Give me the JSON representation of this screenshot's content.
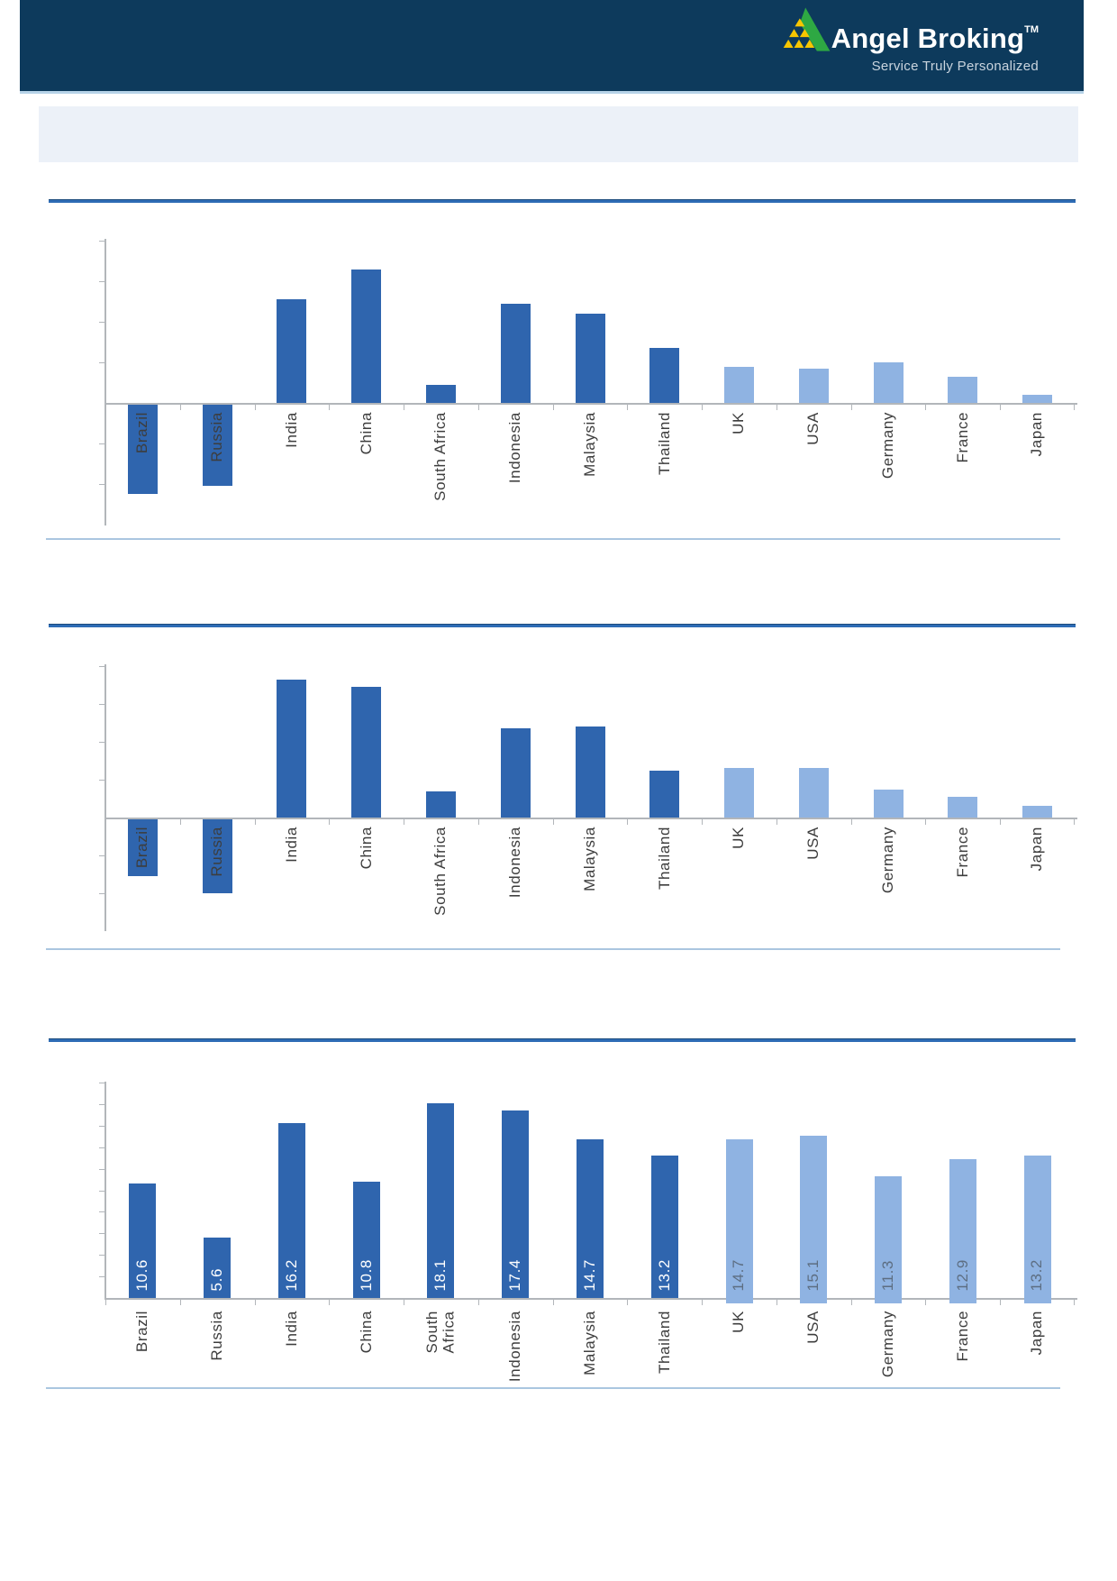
{
  "header": {
    "brand": "Angel Broking",
    "trademark": "TM",
    "tagline": "Service Truly Personalized"
  },
  "banner": {
    "text": ""
  },
  "countries": [
    "Brazil",
    "Russia",
    "India",
    "China",
    "South Africa",
    "Indonesia",
    "Malaysia",
    "Thailand",
    "UK",
    "USA",
    "Germany",
    "France",
    "Japan"
  ],
  "country_groups": [
    "dark",
    "dark",
    "dark",
    "dark",
    "dark",
    "dark",
    "dark",
    "dark",
    "light",
    "light",
    "light",
    "light",
    "light"
  ],
  "colors": {
    "header_bg": "#0D3A5C",
    "header_border": "#B7D3E8",
    "banner_bg": "#ECF1F8",
    "rule_dark": "#2E6CB5",
    "rule_light": "#AAC6E0",
    "bar_dark": "#2F65AE",
    "bar_light": "#8FB3E2",
    "axis": "#B2B6BA",
    "label_text": "#3D3D3D",
    "data_label_on_dark": "#FFFFFF",
    "data_label_on_light": "#5D6E82",
    "logo_green": "#2EA843",
    "logo_yellow": "#F7C600"
  },
  "chart_data": [
    {
      "type": "bar",
      "title": "",
      "xlabel": "",
      "ylabel": "",
      "categories": [
        "Brazil",
        "Russia",
        "India",
        "China",
        "South Africa",
        "Indonesia",
        "Malaysia",
        "Thailand",
        "UK",
        "USA",
        "Germany",
        "France",
        "Japan"
      ],
      "values": [
        -4.4,
        -4.0,
        5.1,
        6.6,
        0.9,
        4.9,
        4.4,
        2.7,
        1.8,
        1.7,
        2.0,
        1.3,
        0.4
      ],
      "ylim": [
        -6,
        8
      ],
      "ytick_interval": 2,
      "grid": false,
      "legend": "none",
      "axis_tick_labels_visible": false
    },
    {
      "type": "bar",
      "title": "",
      "xlabel": "",
      "ylabel": "",
      "categories": [
        "Brazil",
        "Russia",
        "India",
        "China",
        "South Africa",
        "Indonesia",
        "Malaysia",
        "Thailand",
        "UK",
        "USA",
        "Germany",
        "France",
        "Japan"
      ],
      "values": [
        -3.0,
        -3.9,
        7.3,
        6.9,
        1.4,
        4.7,
        4.8,
        2.5,
        2.6,
        2.6,
        1.5,
        1.1,
        0.6
      ],
      "ylim": [
        -6,
        8
      ],
      "ytick_interval": 2,
      "grid": false,
      "legend": "none",
      "axis_tick_labels_visible": false
    },
    {
      "type": "bar",
      "title": "",
      "xlabel": "",
      "ylabel": "",
      "categories": [
        "Brazil",
        "Russia",
        "India",
        "China",
        "South Africa",
        "Indonesia",
        "Malaysia",
        "Thailand",
        "UK",
        "USA",
        "Germany",
        "France",
        "Japan"
      ],
      "category_display": [
        "Brazil",
        "Russia",
        "India",
        "China",
        "South\nAfrica",
        "Indonesia",
        "Malaysia",
        "Thailand",
        "UK",
        "USA",
        "Germany",
        "France",
        "Japan"
      ],
      "values": [
        10.6,
        5.6,
        16.2,
        10.8,
        18.1,
        17.4,
        14.7,
        13.2,
        14.7,
        15.1,
        11.3,
        12.9,
        13.2
      ],
      "data_labels": [
        "10.6",
        "5.6",
        "16.2",
        "10.8",
        "18.1",
        "17.4",
        "14.7",
        "13.2",
        "14.7",
        "15.1",
        "11.3",
        "12.9",
        "13.2"
      ],
      "ylim": [
        0,
        20
      ],
      "ytick_interval": 2,
      "grid": false,
      "legend": "none",
      "axis_tick_labels_visible": false
    }
  ]
}
